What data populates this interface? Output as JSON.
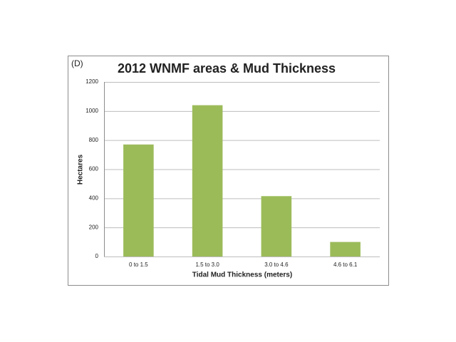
{
  "chart_data": {
    "type": "bar",
    "panel_label": "(D)",
    "title": "2012 WNMF areas & Mud Thickness",
    "x_label": "Tidal Mud Thickness (meters)",
    "y_label": "Hectares",
    "categories": [
      "0 to 1.5",
      "1.5 to 3.0",
      "3.0 to 4.6",
      "4.6 to 6.1"
    ],
    "values": [
      770,
      1040,
      415,
      100
    ],
    "color": "#9bbb59",
    "ylim": [
      0,
      1200
    ],
    "yticks": [
      0,
      200,
      400,
      600,
      800,
      1000,
      1200
    ],
    "grid": true
  }
}
